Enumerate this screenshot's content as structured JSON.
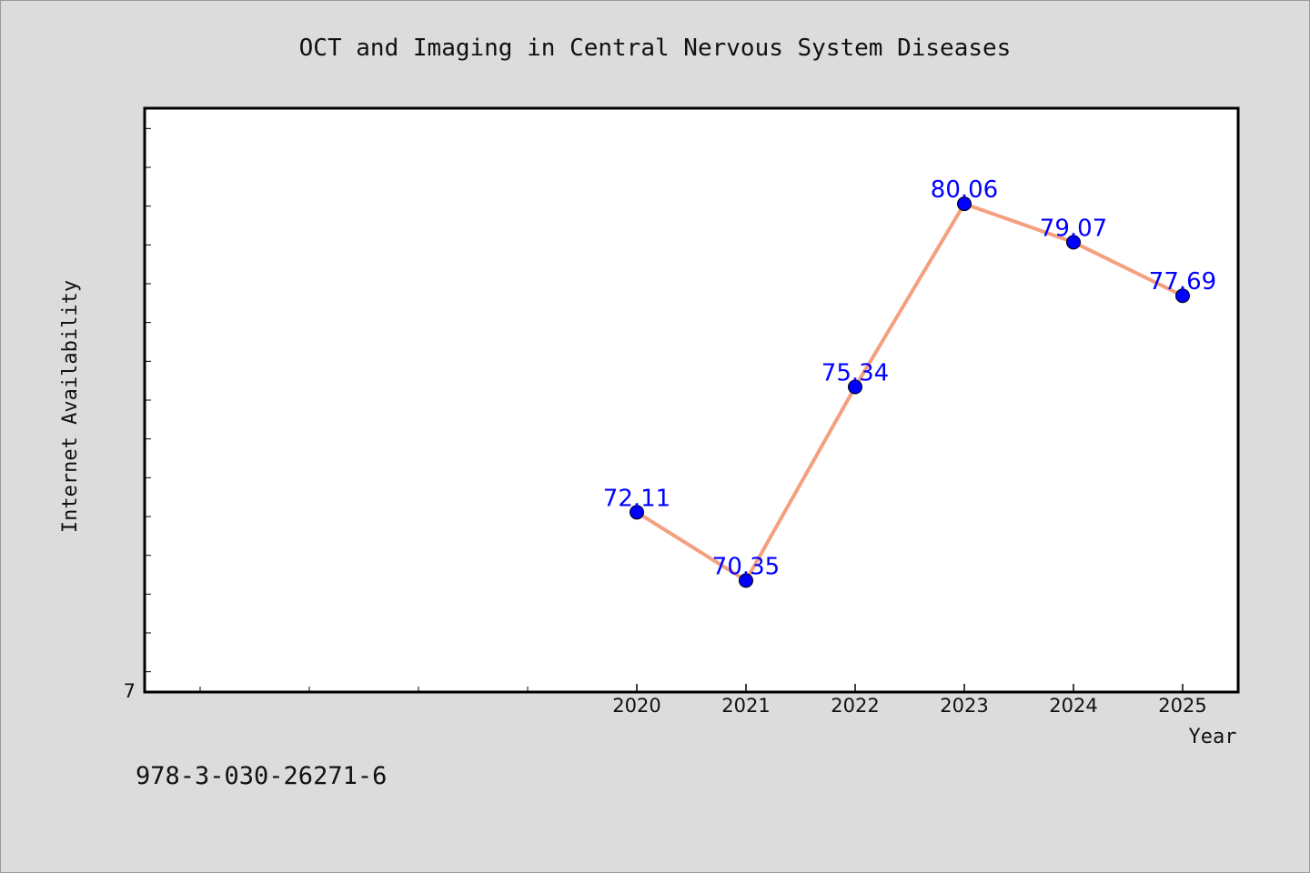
{
  "chart_data": {
    "type": "line",
    "title": "OCT and Imaging in Central Nervous System Diseases",
    "xlabel": "Year",
    "ylabel": "Internet Availability",
    "x": [
      "2020",
      "2021",
      "2022",
      "2023",
      "2024",
      "2025"
    ],
    "series": [
      {
        "values": [
          72.11,
          70.35,
          75.34,
          80.06,
          79.07,
          77.69
        ]
      }
    ],
    "data_labels": [
      "72.11",
      "70.35",
      "75.34",
      "80.06",
      "79.07",
      "77.69"
    ],
    "ylim": [
      67.5,
      82.5
    ],
    "y_tick_label": "7",
    "grid": false,
    "legend": "none",
    "line_color": "#f4a07f",
    "marker_color": "#0000ff",
    "label_color": "#0000ff"
  },
  "footer": {
    "isbn": "978-3-030-26271-6"
  },
  "colors": {
    "background": "#dcdcdc",
    "plot_background": "#ffffff"
  }
}
